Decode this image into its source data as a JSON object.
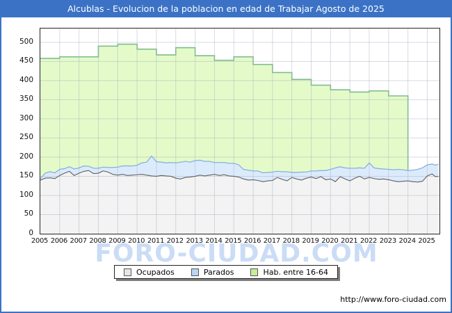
{
  "title_bar": {
    "text": "Alcublas - Evolucion de la poblacion en edad de Trabajar Agosto de 2025",
    "bg_color": "#3b72c6",
    "text_color": "#ffffff"
  },
  "watermark": "FORO-CIUDAD.COM",
  "footer": {
    "url": "http://www.foro-ciudad.com"
  },
  "legend": {
    "items": [
      {
        "label": "Ocupados",
        "fill": "#e6e6e6",
        "border": "#555555"
      },
      {
        "label": "Parados",
        "fill": "#b9d6f2",
        "border": "#555555"
      },
      {
        "label": "Hab. entre 16-64",
        "fill": "#c7ee9a",
        "border": "#555555"
      }
    ]
  },
  "chart_data": {
    "type": "area",
    "title": "Alcublas - Evolucion de la poblacion en edad de Trabajar Agosto de 2025",
    "xlabel": "",
    "ylabel": "",
    "x_range": [
      2005,
      2025.63
    ],
    "y_range": [
      0,
      536
    ],
    "y_ticks": [
      0,
      50,
      100,
      150,
      200,
      250,
      300,
      350,
      400,
      450,
      500
    ],
    "x_tick_years": [
      2005,
      2006,
      2007,
      2008,
      2009,
      2010,
      2011,
      2012,
      2013,
      2014,
      2015,
      2016,
      2017,
      2018,
      2019,
      2020,
      2021,
      2022,
      2023,
      2024,
      2025
    ],
    "grid": true,
    "legend_position": "bottom",
    "grid_color": "#a8aec0",
    "monthly_x": [
      2005,
      2005.25,
      2005.5,
      2005.75,
      2006,
      2006.25,
      2006.5,
      2006.75,
      2007,
      2007.25,
      2007.5,
      2007.75,
      2008,
      2008.25,
      2008.5,
      2008.75,
      2009,
      2009.25,
      2009.5,
      2009.75,
      2010,
      2010.25,
      2010.5,
      2010.75,
      2011,
      2011.25,
      2011.5,
      2011.75,
      2012,
      2012.25,
      2012.5,
      2012.75,
      2013,
      2013.25,
      2013.5,
      2013.75,
      2014,
      2014.25,
      2014.5,
      2014.75,
      2015,
      2015.25,
      2015.5,
      2015.75,
      2016,
      2016.25,
      2016.5,
      2016.75,
      2017,
      2017.25,
      2017.5,
      2017.75,
      2018,
      2018.25,
      2018.5,
      2018.75,
      2019,
      2019.25,
      2019.5,
      2019.75,
      2020,
      2020.25,
      2020.5,
      2020.75,
      2021,
      2021.25,
      2021.5,
      2021.75,
      2022,
      2022.25,
      2022.5,
      2022.75,
      2023,
      2023.25,
      2023.5,
      2023.75,
      2024,
      2024.25,
      2024.5,
      2024.75,
      2025,
      2025.25,
      2025.42,
      2025.58
    ],
    "series": [
      {
        "name": "Hab. entre 16-64",
        "style": "step",
        "fill": "#e4fbc9",
        "stroke": "#7fbd8d",
        "points": [
          [
            2005,
            458
          ],
          [
            2006,
            462
          ],
          [
            2007,
            462
          ],
          [
            2008,
            490
          ],
          [
            2009,
            495
          ],
          [
            2010,
            482
          ],
          [
            2011,
            467
          ],
          [
            2012,
            486
          ],
          [
            2013,
            465
          ],
          [
            2014,
            453
          ],
          [
            2015,
            462
          ],
          [
            2016,
            442
          ],
          [
            2017,
            421
          ],
          [
            2018,
            403
          ],
          [
            2019,
            388
          ],
          [
            2020,
            376
          ],
          [
            2021,
            370
          ],
          [
            2022,
            373
          ],
          [
            2023,
            360
          ]
        ],
        "end_x": 2024
      },
      {
        "name": "Parados",
        "style": "line",
        "stacked_on": "Ocupados",
        "fill": "#dcebfc",
        "stroke": "#85b1e0",
        "values": [
          4,
          13,
          16,
          15,
          16,
          12,
          12,
          17,
          14,
          14,
          11,
          14,
          13,
          10,
          12,
          18,
          21,
          22,
          25,
          24,
          25,
          30,
          34,
          52,
          38,
          35,
          34,
          36,
          40,
          44,
          42,
          39,
          41,
          39,
          38,
          36,
          31,
          34,
          32,
          33,
          34,
          32,
          25,
          26,
          23,
          25,
          23,
          22,
          22,
          16,
          20,
          24,
          13,
          17,
          21,
          16,
          16,
          20,
          16,
          24,
          25,
          36,
          26,
          29,
          33,
          26,
          22,
          28,
          38,
          28,
          28,
          26,
          27,
          29,
          32,
          30,
          27,
          30,
          33,
          35,
          29,
          26,
          30,
          32
        ]
      },
      {
        "name": "Ocupados",
        "style": "line",
        "fill": "#f3f3f3",
        "stroke": "#606060",
        "values": [
          140,
          145,
          146,
          144,
          152,
          158,
          163,
          152,
          158,
          163,
          165,
          157,
          158,
          164,
          161,
          155,
          153,
          155,
          152,
          153,
          154,
          155,
          153,
          151,
          150,
          152,
          151,
          150,
          145,
          143,
          147,
          148,
          150,
          153,
          151,
          153,
          155,
          152,
          154,
          151,
          150,
          148,
          143,
          140,
          141,
          139,
          136,
          138,
          139,
          147,
          142,
          138,
          147,
          143,
          140,
          145,
          148,
          144,
          149,
          141,
          143,
          136,
          149,
          143,
          138,
          145,
          150,
          143,
          147,
          144,
          142,
          143,
          141,
          138,
          136,
          137,
          138,
          136,
          135,
          137,
          151,
          156,
          149,
          150
        ]
      }
    ]
  }
}
